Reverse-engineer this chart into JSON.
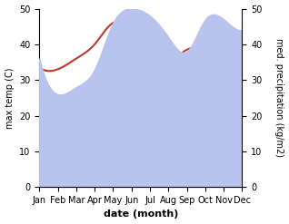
{
  "months": [
    "Jan",
    "Feb",
    "Mar",
    "Apr",
    "May",
    "Jun",
    "Jul",
    "Aug",
    "Sep",
    "Oct",
    "Nov",
    "Dec"
  ],
  "max_temp_C": [
    33.5,
    33.0,
    36.0,
    40.0,
    46.0,
    44.0,
    38.0,
    35.0,
    38.5,
    38.0,
    35.0,
    34.0
  ],
  "precipitation_mm": [
    36.0,
    26.0,
    28.0,
    33.0,
    46.0,
    50.0,
    48.0,
    42.0,
    38.0,
    47.0,
    47.0,
    44.0
  ],
  "temp_color": "#c0392b",
  "precip_fill_color": "#b8c4ee",
  "temp_ylim": [
    0,
    50
  ],
  "precip_ylim": [
    0,
    50
  ],
  "xlabel": "date (month)",
  "ylabel_left": "max temp (C)",
  "ylabel_right": "med. precipitation (kg/m2)",
  "bg_color": "#ffffff",
  "label_fontsize": 8,
  "tick_fontsize": 7
}
